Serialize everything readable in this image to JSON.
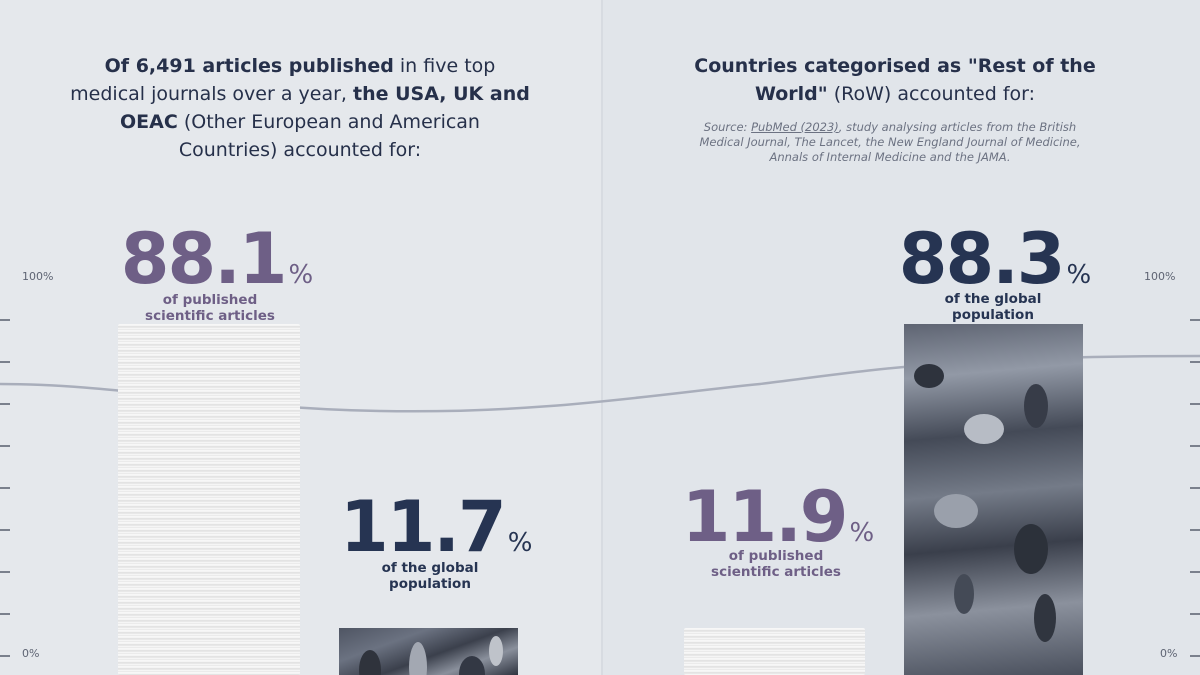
{
  "left": {
    "headline_parts": [
      {
        "text": "Of 6,491 articles published",
        "bold": true
      },
      {
        "text": " in five top medical journals over a year, ",
        "bold": false
      },
      {
        "text": "the USA, UK and OEAC",
        "bold": true
      },
      {
        "text": " (Other European and American Countries) accounted for:",
        "bold": false
      }
    ],
    "articles_value": "88.1",
    "articles_caption_1": "of published",
    "articles_caption_2": "scientific articles",
    "population_value": "11.7",
    "population_caption_1": "of the global",
    "population_caption_2": "population"
  },
  "right": {
    "headline_parts": [
      {
        "text": "Countries categorised as \"Rest of the World\"",
        "bold": true
      },
      {
        "text": " (RoW) accounted for:",
        "bold": false
      }
    ],
    "source": {
      "prefix": "Source: ",
      "link": "PubMed (2023)",
      "rest": ", study analysing articles from the British Medical Journal, The Lancet, the New England Journal of Medicine, Annals of Internal Medicine and the JAMA."
    },
    "population_value": "88.3",
    "population_caption_1": "of the global",
    "population_caption_2": "population",
    "articles_value": "11.9",
    "articles_caption_1": "of published",
    "articles_caption_2": "scientific articles"
  },
  "pct_symbol": "%",
  "axis": {
    "top_label": "100%",
    "bottom_label": "0%"
  },
  "colors": {
    "purple": "#6e5f86",
    "navy": "#263452",
    "trend_line": "#a9aebb"
  },
  "chart_data": {
    "type": "bar",
    "ylim": [
      0,
      100
    ],
    "groups": [
      {
        "label": "USA, UK and OEAC",
        "series": [
          {
            "name": "of published scientific articles",
            "value": 88.1
          },
          {
            "name": "of the global population",
            "value": 11.7
          }
        ]
      },
      {
        "label": "Rest of the World (RoW)",
        "series": [
          {
            "name": "of published scientific articles",
            "value": 11.9
          },
          {
            "name": "of the global population",
            "value": 88.3
          }
        ]
      }
    ]
  }
}
